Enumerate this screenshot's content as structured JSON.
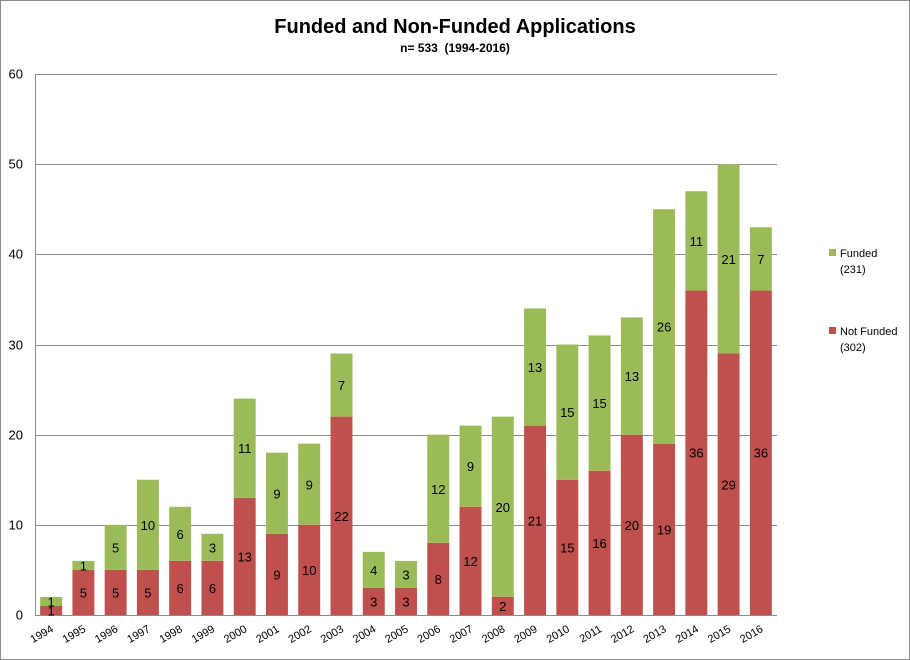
{
  "chart_data": {
    "type": "bar",
    "stacked": true,
    "title": "Funded and Non-Funded Applications",
    "subtitle": "n= 533  (1994-2016)",
    "categories": [
      "1994",
      "1995",
      "1996",
      "1997",
      "1998",
      "1999",
      "2000",
      "2001",
      "2002",
      "2003",
      "2004",
      "2005",
      "2006",
      "2007",
      "2008",
      "2009",
      "2010",
      "2011",
      "2012",
      "2013",
      "2014",
      "2015",
      "2016"
    ],
    "series": [
      {
        "name": "Not Funded",
        "count_label": "(302)",
        "color": "#c0504d",
        "values": [
          1,
          5,
          5,
          5,
          6,
          6,
          13,
          9,
          10,
          22,
          3,
          3,
          8,
          12,
          2,
          21,
          15,
          16,
          20,
          19,
          36,
          29,
          36
        ]
      },
      {
        "name": "Funded",
        "count_label": "(231)",
        "color": "#9bbb59",
        "values": [
          1,
          1,
          5,
          10,
          6,
          3,
          11,
          9,
          9,
          7,
          4,
          3,
          12,
          9,
          20,
          13,
          15,
          15,
          13,
          26,
          11,
          21,
          7
        ]
      }
    ],
    "ylim": [
      0,
      60
    ],
    "yticks": [
      "0",
      "10",
      "20",
      "30",
      "40",
      "50",
      "60"
    ],
    "grid": true,
    "legend_position": "right"
  }
}
